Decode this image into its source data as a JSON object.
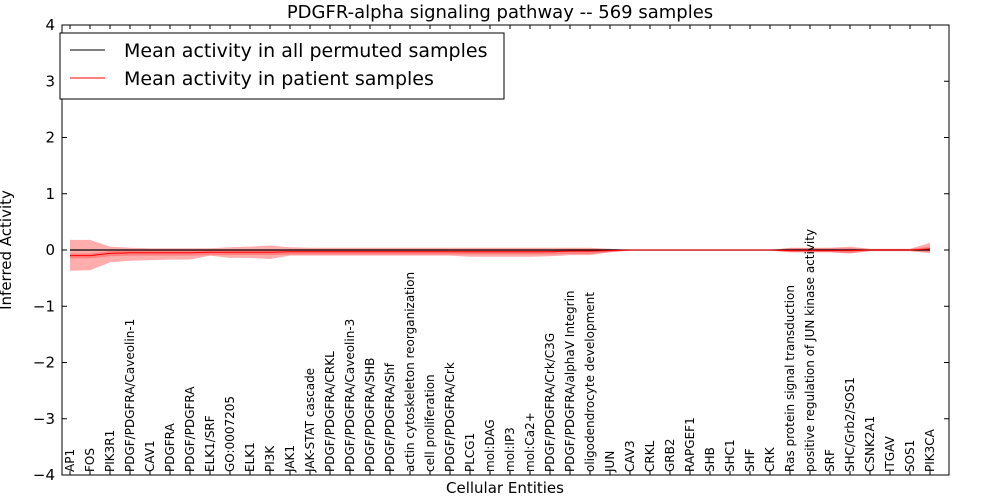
{
  "chart_data": {
    "type": "line",
    "title": "PDGFR-alpha signaling pathway -- 569 samples",
    "xlabel": "Cellular Entities",
    "ylabel": "Inferred Activity",
    "ylim": [
      -4,
      4
    ],
    "yticks": [
      4,
      3,
      2,
      1,
      0,
      -1,
      -2,
      -3,
      -4
    ],
    "ytick_labels": [
      "4",
      "3",
      "2",
      "1",
      "0",
      "−1",
      "−2",
      "−3",
      "−4"
    ],
    "grid": false,
    "legend_position": "top-left",
    "categories": [
      "AP1",
      "FOS",
      "PIK3R1",
      "PDGF/PDGFRA/Caveolin-1",
      "CAV1",
      "PDGFRA",
      "PDGF/PDGFRA",
      "ELK1/SRF",
      "GO:0007205",
      "ELK1",
      "PI3K",
      "JAK1",
      "JAK-STAT cascade",
      "PDGF/PDGFRA/CRKL",
      "PDGF/PDGFRA/Caveolin-3",
      "PDGF/PDGFRA/SHB",
      "PDGF/PDGFRA/Shf",
      "actin cytoskeleton reorganization",
      "cell proliferation",
      "PDGF/PDGFRA/Crk",
      "PLCG1",
      "mol:DAG",
      "mol:IP3",
      "mol:Ca2+",
      "PDGF/PDGFRA/Crk/C3G",
      "PDGF/PDGFRA/alphaV Integrin",
      "oligodendrocyte development",
      "JUN",
      "CAV3",
      "CRKL",
      "GRB2",
      "RAPGEF1",
      "SHB",
      "SHC1",
      "SHF",
      "CRK",
      "Ras protein signal transduction",
      "positive regulation of JUN kinase activity",
      "SRF",
      "SHC/Grb2/SOS1",
      "CSNK2A1",
      "ITGAV",
      "SOS1",
      "PIK3CA"
    ],
    "series": [
      {
        "name": "Mean activity in all permuted samples",
        "color": "#000000",
        "values": [
          0,
          0,
          0,
          0,
          0,
          0,
          0,
          0,
          0,
          0,
          0,
          0,
          0,
          0,
          0,
          0,
          0,
          0,
          0,
          0,
          0,
          0,
          0,
          0,
          0,
          0,
          0,
          0,
          0,
          0,
          0,
          0,
          0,
          0,
          0,
          0,
          0,
          0,
          0,
          0,
          0,
          0,
          0,
          0
        ]
      },
      {
        "name": "Mean activity in patient samples",
        "color": "#ff0000",
        "values": [
          -0.1,
          -0.1,
          -0.06,
          -0.05,
          -0.05,
          -0.05,
          -0.05,
          -0.04,
          -0.04,
          -0.04,
          -0.04,
          -0.03,
          -0.03,
          -0.03,
          -0.03,
          -0.03,
          -0.03,
          -0.03,
          -0.03,
          -0.03,
          -0.03,
          -0.03,
          -0.03,
          -0.03,
          -0.03,
          -0.02,
          -0.02,
          -0.01,
          0,
          0,
          0,
          0,
          0,
          0,
          0,
          0,
          -0.01,
          -0.01,
          -0.01,
          -0.01,
          0,
          0,
          0,
          0.02
        ],
        "band_upper": [
          0.18,
          0.18,
          0.06,
          0.04,
          0.03,
          0.03,
          0.03,
          0.03,
          0.05,
          0.06,
          0.08,
          0.05,
          0.04,
          0.04,
          0.04,
          0.04,
          0.04,
          0.04,
          0.04,
          0.04,
          0.04,
          0.04,
          0.04,
          0.04,
          0.04,
          0.04,
          0.04,
          0.02,
          0,
          0,
          0,
          0,
          0,
          0,
          0,
          0,
          0.04,
          0.04,
          0.04,
          0.06,
          0.02,
          0.02,
          0.02,
          0.13
        ],
        "band_lower": [
          -0.37,
          -0.36,
          -0.22,
          -0.19,
          -0.18,
          -0.17,
          -0.17,
          -0.1,
          -0.14,
          -0.14,
          -0.16,
          -0.1,
          -0.1,
          -0.1,
          -0.1,
          -0.1,
          -0.1,
          -0.1,
          -0.1,
          -0.1,
          -0.12,
          -0.12,
          -0.12,
          -0.12,
          -0.11,
          -0.09,
          -0.09,
          -0.04,
          -0.01,
          -0.01,
          -0.01,
          -0.01,
          -0.01,
          -0.01,
          -0.01,
          -0.01,
          -0.04,
          -0.04,
          -0.04,
          -0.06,
          -0.02,
          -0.02,
          -0.02,
          -0.06
        ]
      }
    ]
  }
}
